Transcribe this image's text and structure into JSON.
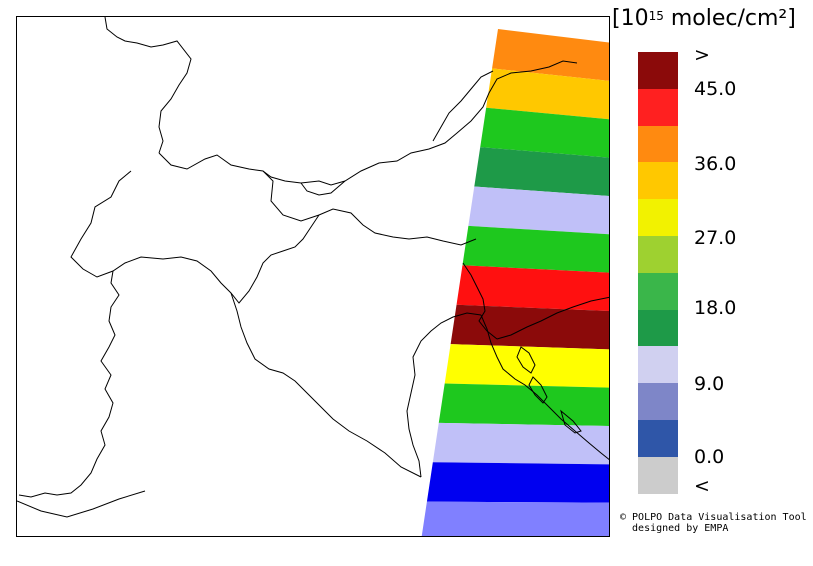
{
  "unit": {
    "prefix": "[10",
    "exponent": "15",
    "suffix": " molec/cm²]"
  },
  "legend": {
    "levels": [
      {
        "label": ">",
        "color": "#8b0a0a"
      },
      {
        "label": "45.0",
        "color": "#ff2020"
      },
      {
        "label": "",
        "color": "#ff8a10"
      },
      {
        "label": "36.0",
        "color": "#ffc800"
      },
      {
        "label": "",
        "color": "#f2f200"
      },
      {
        "label": "27.0",
        "color": "#9ed130"
      },
      {
        "label": "",
        "color": "#3ab64a"
      },
      {
        "label": "18.0",
        "color": "#1e9a48"
      },
      {
        "label": "",
        "color": "#d0d0f0"
      },
      {
        "label": "9.0",
        "color": "#7e86c8"
      },
      {
        "label": "",
        "color": "#2f56a8"
      },
      {
        "label": "0.0",
        "color": "#cccccc"
      },
      {
        "label": "<",
        "color": null
      }
    ]
  },
  "swath_bands": [
    {
      "color": "#ff8a10"
    },
    {
      "color": "#ffc800"
    },
    {
      "color": "#1ec81e"
    },
    {
      "color": "#1e9a48"
    },
    {
      "color": "#c0c0f8"
    },
    {
      "color": "#1ec81e"
    },
    {
      "color": "#ff1010"
    },
    {
      "color": "#8b0a0a"
    },
    {
      "color": "#ffff00"
    },
    {
      "color": "#1ec81e"
    },
    {
      "color": "#c0c0f8"
    },
    {
      "color": "#0000f0"
    },
    {
      "color": "#8080ff"
    }
  ],
  "credit": {
    "line1": "© POLPO Data Visualisation Tool",
    "line2": "  designed by EMPA"
  }
}
